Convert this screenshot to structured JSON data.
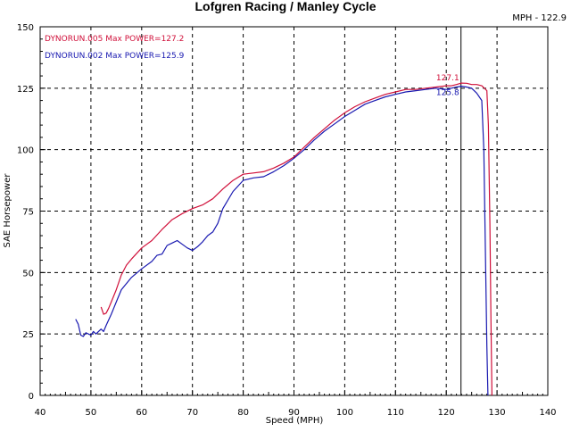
{
  "chart_data": {
    "type": "line",
    "title": "Lofgren Racing / Manley Cycle",
    "xlabel": "Speed (MPH)",
    "ylabel": "SAE Horsepower",
    "xlim": [
      40,
      140
    ],
    "ylim": [
      0,
      150
    ],
    "xticks": [
      40,
      50,
      60,
      70,
      80,
      90,
      100,
      110,
      120,
      130,
      140
    ],
    "yticks": [
      0,
      25,
      50,
      75,
      100,
      125,
      150
    ],
    "grid": true,
    "legend_position": "top-left",
    "cursor": {
      "label": "MPH - 122.9",
      "x": 122.9
    },
    "series": [
      {
        "name": "DYNORUN.005",
        "legend_text": "DYNORUN.005  Max POWER=127.2",
        "color": "#d0103a",
        "peak_label": "127.1",
        "peak": [
          122.9,
          127.1
        ],
        "x": [
          52.0,
          52.5,
          53.0,
          53.5,
          54.0,
          55.0,
          56.0,
          57.0,
          58.0,
          60.0,
          62.0,
          64.0,
          66.0,
          68.0,
          70.0,
          72.0,
          74.0,
          76.0,
          78.0,
          80.0,
          82.0,
          84.0,
          86.0,
          88.0,
          90.0,
          92.0,
          94.0,
          96.0,
          98.0,
          100.0,
          102.0,
          104.0,
          106.0,
          108.0,
          110.0,
          112.0,
          114.0,
          116.0,
          118.0,
          120.0,
          121.0,
          122.0,
          123.0,
          124.0,
          125.0,
          126.0,
          127.0,
          128.0,
          128.3,
          128.6,
          128.8,
          129.0
        ],
        "y": [
          36.0,
          33.0,
          33.5,
          35.5,
          38.0,
          43.0,
          49.0,
          53.0,
          55.5,
          60.0,
          63.0,
          67.5,
          71.5,
          74.0,
          76.0,
          77.5,
          80.0,
          84.0,
          87.5,
          90.0,
          90.5,
          91.0,
          92.5,
          94.5,
          97.0,
          101.0,
          105.0,
          108.5,
          112.0,
          115.0,
          117.5,
          119.5,
          121.0,
          122.5,
          123.5,
          124.5,
          124.5,
          125.0,
          125.5,
          126.0,
          126.0,
          126.5,
          127.1,
          127.0,
          126.5,
          126.5,
          126.0,
          124.0,
          110.0,
          70.0,
          30.0,
          0.0
        ]
      },
      {
        "name": "DYNORUN.002",
        "legend_text": "DYNORUN.002  Max POWER=125.9",
        "color": "#1818b0",
        "peak_label": "125.8",
        "peak": [
          122.9,
          125.8
        ],
        "x": [
          47.0,
          47.5,
          48.0,
          48.5,
          49.0,
          49.5,
          50.0,
          50.5,
          51.0,
          51.5,
          52.0,
          52.5,
          53.0,
          54.0,
          55.0,
          56.0,
          58.0,
          60.0,
          62.0,
          63.0,
          64.0,
          65.0,
          66.0,
          67.0,
          68.0,
          69.0,
          70.0,
          71.0,
          72.0,
          73.0,
          74.0,
          75.0,
          76.0,
          78.0,
          80.0,
          82.0,
          84.0,
          86.0,
          88.0,
          90.0,
          92.0,
          94.0,
          96.0,
          98.0,
          100.0,
          102.0,
          104.0,
          106.0,
          108.0,
          110.0,
          112.0,
          114.0,
          116.0,
          118.0,
          120.0,
          121.0,
          122.0,
          123.0,
          124.0,
          125.0,
          126.0,
          127.0,
          127.4,
          127.7,
          128.0,
          128.2
        ],
        "y": [
          31.0,
          29.0,
          24.5,
          24.0,
          25.5,
          25.0,
          24.5,
          26.0,
          25.0,
          26.0,
          27.0,
          26.0,
          28.5,
          33.0,
          38.0,
          43.0,
          48.0,
          51.5,
          54.5,
          57.0,
          57.5,
          61.0,
          62.0,
          63.0,
          61.5,
          60.0,
          59.0,
          60.5,
          62.5,
          65.0,
          66.5,
          70.0,
          76.0,
          83.0,
          87.5,
          88.5,
          89.0,
          91.0,
          93.5,
          96.5,
          100.0,
          104.0,
          107.5,
          110.5,
          113.5,
          116.0,
          118.5,
          120.0,
          121.5,
          122.5,
          123.5,
          124.0,
          124.5,
          125.0,
          124.5,
          125.0,
          125.5,
          125.8,
          125.5,
          125.0,
          123.0,
          120.0,
          100.0,
          60.0,
          20.0,
          0.0
        ]
      }
    ]
  }
}
